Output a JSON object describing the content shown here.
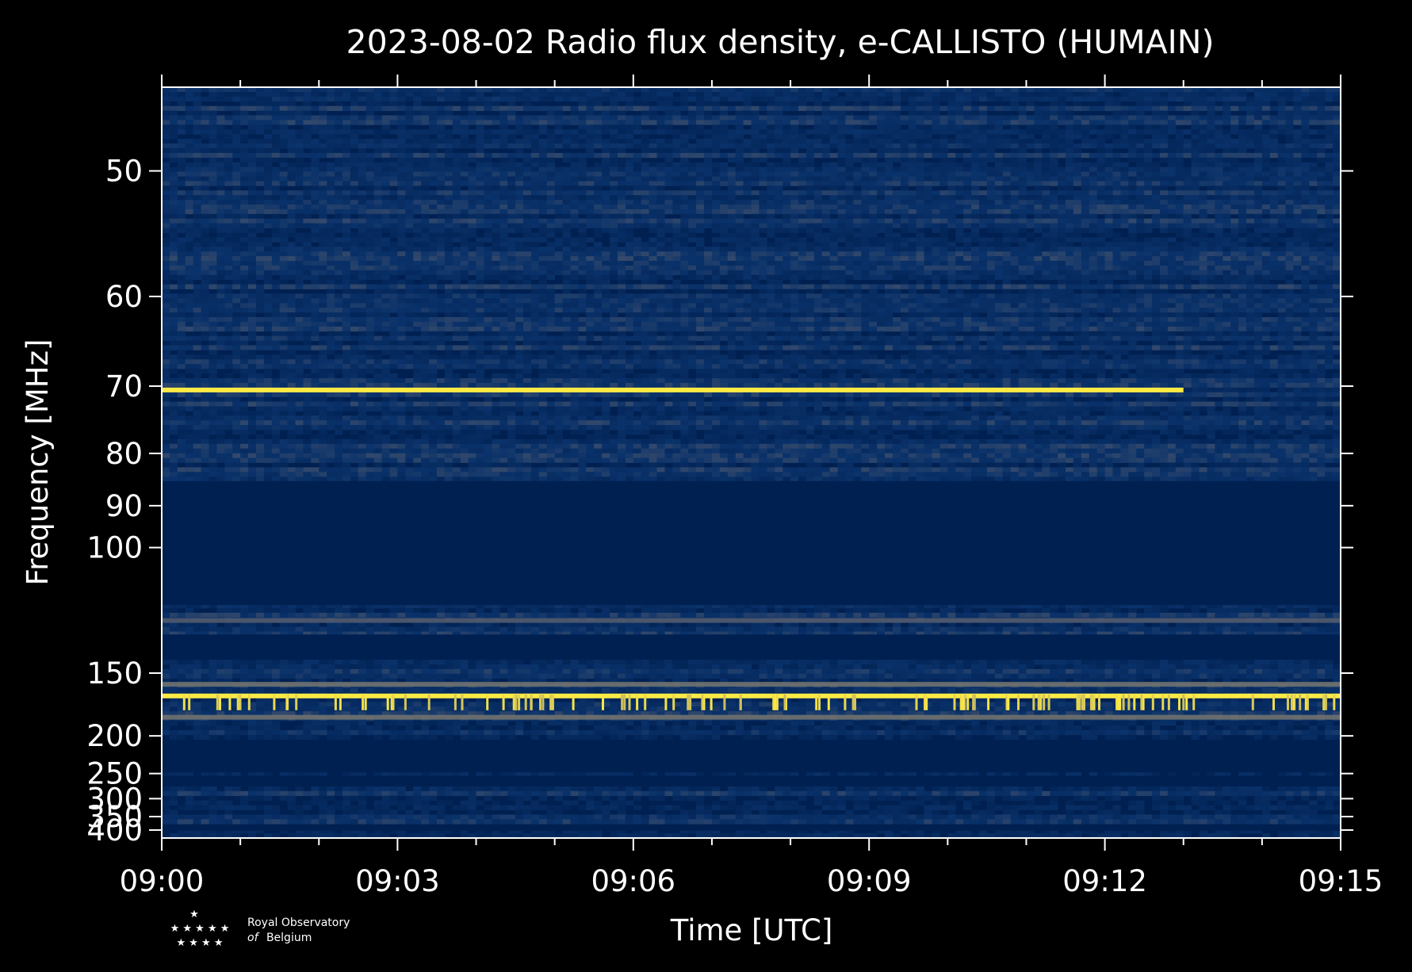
{
  "chart_data": {
    "type": "heatmap",
    "title": "2023-08-02 Radio flux density, e-CALLISTO (HUMAIN)",
    "xlabel": "Time [UTC]",
    "ylabel": "Frequency [MHz]",
    "x_ticks": [
      "09:00",
      "09:03",
      "09:06",
      "09:09",
      "09:12",
      "09:15"
    ],
    "x_range_minutes": [
      0,
      15
    ],
    "y_ticks": [
      50,
      60,
      70,
      80,
      90,
      100,
      150,
      200,
      250,
      300,
      350,
      400
    ],
    "y_range_mhz": [
      45,
      437
    ],
    "y_scale": "reciprocal",
    "grid": false,
    "colormap": [
      "#002051",
      "#0a326a",
      "#575d6d",
      "#a59c74",
      "#fdea45"
    ],
    "background_color": "#002051",
    "quiet_bands_mhz": [
      [
        85,
        118
      ],
      [
        130,
        142
      ],
      [
        205,
        245
      ],
      [
        254,
        270
      ],
      [
        380,
        403
      ]
    ],
    "bright_bands": [
      {
        "freq_mhz": 70.5,
        "start_min": 0,
        "end_min": 13.0,
        "level": 1.0
      },
      {
        "freq_mhz": 165,
        "start_min": 0,
        "end_min": 15,
        "level": 1.0
      },
      {
        "freq_mhz": 157,
        "start_min": 0,
        "end_min": 15,
        "level": 0.6
      },
      {
        "freq_mhz": 182,
        "start_min": 0,
        "end_min": 15,
        "level": 0.6
      },
      {
        "freq_mhz": 124,
        "start_min": 0,
        "end_min": 15,
        "level": 0.5
      }
    ]
  },
  "logo": {
    "line1": "Royal Observatory",
    "line2_italic": "of",
    "line2": "Belgium"
  }
}
